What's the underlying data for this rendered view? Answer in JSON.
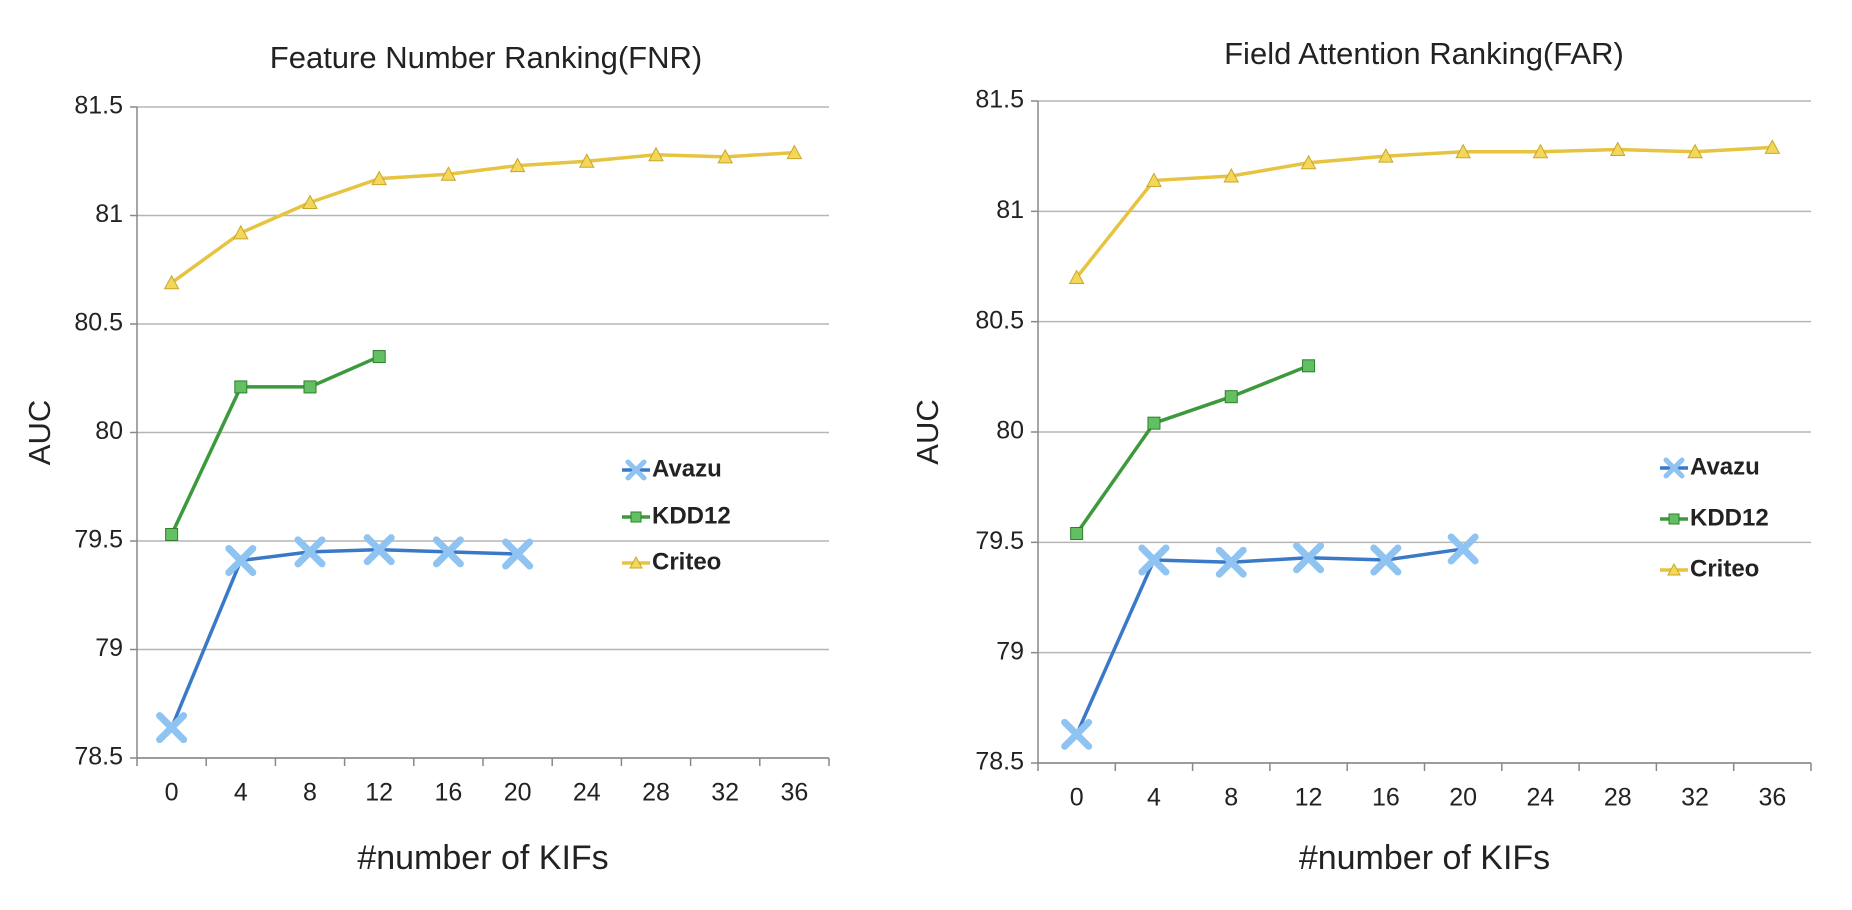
{
  "chart_data": [
    {
      "type": "line",
      "title": "Feature Number Ranking(FNR)",
      "x_label": "#number of KIFs",
      "y_label": "AUC",
      "categories": [
        "0",
        "4",
        "8",
        "12",
        "16",
        "20",
        "24",
        "28",
        "32",
        "36"
      ],
      "ylim": [
        78.5,
        81.5
      ],
      "yticks": [
        78.5,
        79,
        79.5,
        80,
        80.5,
        81,
        81.5
      ],
      "grid": true,
      "legend": "right",
      "series": [
        {
          "name": "Avazu",
          "color": "#3a78c8",
          "marker": "x",
          "marker_color": "#8ec3f2",
          "values": [
            78.64,
            79.41,
            79.45,
            79.46,
            79.45,
            79.44,
            null,
            null,
            null,
            null
          ]
        },
        {
          "name": "KDD12",
          "color": "#3c9a3c",
          "marker": "square",
          "marker_color": "#62bf62",
          "values": [
            79.53,
            80.21,
            80.21,
            80.35,
            null,
            null,
            null,
            null,
            null,
            null
          ]
        },
        {
          "name": "Criteo",
          "color": "#e6c441",
          "marker": "triangle",
          "marker_color": "#f2d75a",
          "values": [
            80.69,
            80.92,
            81.06,
            81.17,
            81.19,
            81.23,
            81.25,
            81.28,
            81.27,
            81.29
          ]
        }
      ]
    },
    {
      "type": "line",
      "title": "Field Attention Ranking(FAR)",
      "x_label": "#number of KIFs",
      "y_label": "AUC",
      "categories": [
        "0",
        "4",
        "8",
        "12",
        "16",
        "20",
        "24",
        "28",
        "32",
        "36"
      ],
      "ylim": [
        78.5,
        81.5
      ],
      "yticks": [
        78.5,
        79,
        79.5,
        80,
        80.5,
        81,
        81.5
      ],
      "grid": true,
      "legend": "right",
      "series": [
        {
          "name": "Avazu",
          "color": "#3a78c8",
          "marker": "x",
          "marker_color": "#8ec3f2",
          "values": [
            78.63,
            79.42,
            79.41,
            79.43,
            79.42,
            79.47,
            null,
            null,
            null,
            null
          ]
        },
        {
          "name": "KDD12",
          "color": "#3c9a3c",
          "marker": "square",
          "marker_color": "#62bf62",
          "values": [
            79.54,
            80.04,
            80.16,
            80.3,
            null,
            null,
            null,
            null,
            null,
            null
          ]
        },
        {
          "name": "Criteo",
          "color": "#e6c441",
          "marker": "triangle",
          "marker_color": "#f2d75a",
          "values": [
            80.7,
            81.14,
            81.16,
            81.22,
            81.25,
            81.27,
            81.27,
            81.28,
            81.27,
            81.29
          ]
        }
      ]
    }
  ]
}
